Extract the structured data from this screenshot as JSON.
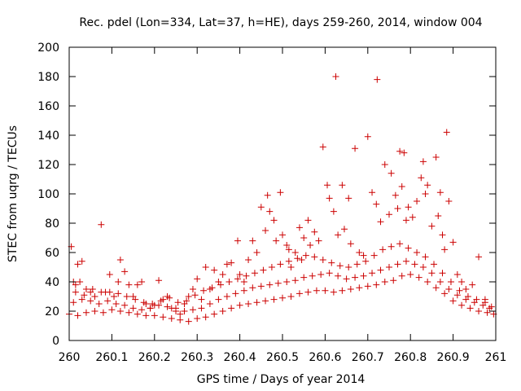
{
  "chart_data": {
    "type": "scatter",
    "title": "Rec. pdel (Lon=334, Lat=37, h=HE), days 259-260, 2014, window 004",
    "xlabel": "GPS time / Days of year 2014",
    "ylabel": "STEC from uqrg / TECUs",
    "xlim": [
      260,
      261
    ],
    "ylim": [
      0,
      200
    ],
    "x_ticks": [
      "260",
      "260.1",
      "260.2",
      "260.3",
      "260.4",
      "260.5",
      "260.6",
      "260.7",
      "260.8",
      "260.9",
      "261"
    ],
    "y_ticks": [
      "0",
      "20",
      "40",
      "60",
      "80",
      "100",
      "120",
      "140",
      "160",
      "180",
      "200"
    ],
    "grid": false,
    "legend": "none",
    "marker": "plus",
    "color": "#cc0000",
    "series": [
      {
        "points": [
          [
            260.005,
            64
          ],
          [
            260.01,
            40
          ],
          [
            260.015,
            38
          ],
          [
            260.02,
            52
          ],
          [
            260.025,
            40
          ],
          [
            260.03,
            54
          ],
          [
            260.04,
            35
          ],
          [
            260.05,
            33
          ],
          [
            260.06,
            30
          ],
          [
            260.075,
            79
          ],
          [
            260.085,
            33
          ],
          [
            260.095,
            45
          ],
          [
            260.105,
            30
          ],
          [
            260.115,
            40
          ],
          [
            260.12,
            55
          ],
          [
            260.13,
            47
          ],
          [
            260.14,
            38
          ],
          [
            260.15,
            30
          ],
          [
            260.16,
            38
          ],
          [
            260.17,
            40
          ],
          [
            260.18,
            25
          ],
          [
            260.19,
            22
          ],
          [
            260.2,
            24
          ],
          [
            260.21,
            41
          ],
          [
            260.22,
            28
          ],
          [
            260.23,
            30
          ],
          [
            260.24,
            22
          ],
          [
            260.25,
            20
          ],
          [
            260.26,
            18
          ],
          [
            260.27,
            25
          ],
          [
            260.28,
            30
          ],
          [
            260.29,
            35
          ],
          [
            260.3,
            42
          ],
          [
            260.31,
            28
          ],
          [
            260.32,
            50
          ],
          [
            260.33,
            35
          ],
          [
            260.34,
            48
          ],
          [
            260.35,
            40
          ],
          [
            260.36,
            45
          ],
          [
            260.37,
            52
          ],
          [
            260.38,
            53
          ],
          [
            260.395,
            68
          ],
          [
            260.4,
            45
          ],
          [
            260.41,
            40
          ],
          [
            260.42,
            55
          ],
          [
            260.43,
            68
          ],
          [
            260.44,
            60
          ],
          [
            260.45,
            91
          ],
          [
            260.46,
            75
          ],
          [
            260.465,
            99
          ],
          [
            260.47,
            88
          ],
          [
            260.48,
            82
          ],
          [
            260.485,
            68
          ],
          [
            260.495,
            101
          ],
          [
            260.5,
            72
          ],
          [
            260.51,
            65
          ],
          [
            260.515,
            62
          ],
          [
            260.52,
            50
          ],
          [
            260.53,
            60
          ],
          [
            260.54,
            77
          ],
          [
            260.545,
            55
          ],
          [
            260.55,
            70
          ],
          [
            260.56,
            82
          ],
          [
            260.565,
            65
          ],
          [
            260.575,
            74
          ],
          [
            260.585,
            68
          ],
          [
            260.595,
            132
          ],
          [
            260.605,
            106
          ],
          [
            260.61,
            97
          ],
          [
            260.62,
            88
          ],
          [
            260.625,
            180
          ],
          [
            260.63,
            72
          ],
          [
            260.64,
            106
          ],
          [
            260.645,
            76
          ],
          [
            260.655,
            97
          ],
          [
            260.66,
            66
          ],
          [
            260.67,
            131
          ],
          [
            260.68,
            60
          ],
          [
            260.69,
            58
          ],
          [
            260.7,
            139
          ],
          [
            260.71,
            101
          ],
          [
            260.72,
            93
          ],
          [
            260.722,
            178
          ],
          [
            260.73,
            81
          ],
          [
            260.74,
            120
          ],
          [
            260.75,
            86
          ],
          [
            260.755,
            114
          ],
          [
            260.765,
            99
          ],
          [
            260.77,
            90
          ],
          [
            260.775,
            129
          ],
          [
            260.78,
            105
          ],
          [
            260.785,
            128
          ],
          [
            260.79,
            82
          ],
          [
            260.795,
            91
          ],
          [
            260.805,
            84
          ],
          [
            260.815,
            95
          ],
          [
            260.825,
            111
          ],
          [
            260.83,
            122
          ],
          [
            260.835,
            100
          ],
          [
            260.84,
            106
          ],
          [
            260.85,
            78
          ],
          [
            260.86,
            125
          ],
          [
            260.865,
            85
          ],
          [
            260.87,
            101
          ],
          [
            260.875,
            72
          ],
          [
            260.88,
            62
          ],
          [
            260.885,
            142
          ],
          [
            260.89,
            95
          ],
          [
            260.9,
            67
          ],
          [
            260.91,
            45
          ],
          [
            260.92,
            40
          ],
          [
            260.93,
            35
          ],
          [
            260.945,
            38
          ],
          [
            260.96,
            57
          ],
          [
            260.975,
            28
          ],
          [
            260.985,
            22
          ],
          [
            260.0,
            18
          ],
          [
            260.02,
            17
          ],
          [
            260.04,
            19
          ],
          [
            260.06,
            20
          ],
          [
            260.08,
            19
          ],
          [
            260.1,
            21
          ],
          [
            260.12,
            20
          ],
          [
            260.14,
            19
          ],
          [
            260.16,
            18
          ],
          [
            260.18,
            17
          ],
          [
            260.2,
            17
          ],
          [
            260.22,
            16
          ],
          [
            260.24,
            15
          ],
          [
            260.26,
            14
          ],
          [
            260.28,
            13
          ],
          [
            260.3,
            15
          ],
          [
            260.32,
            16
          ],
          [
            260.34,
            18
          ],
          [
            260.36,
            20
          ],
          [
            260.38,
            22
          ],
          [
            260.4,
            24
          ],
          [
            260.42,
            25
          ],
          [
            260.44,
            26
          ],
          [
            260.46,
            27
          ],
          [
            260.48,
            28
          ],
          [
            260.5,
            29
          ],
          [
            260.52,
            30
          ],
          [
            260.54,
            32
          ],
          [
            260.56,
            33
          ],
          [
            260.58,
            34
          ],
          [
            260.6,
            34
          ],
          [
            260.62,
            33
          ],
          [
            260.64,
            34
          ],
          [
            260.66,
            35
          ],
          [
            260.68,
            36
          ],
          [
            260.7,
            37
          ],
          [
            260.72,
            38
          ],
          [
            260.74,
            40
          ],
          [
            260.76,
            41
          ],
          [
            260.78,
            44
          ],
          [
            260.8,
            45
          ],
          [
            260.82,
            43
          ],
          [
            260.84,
            40
          ],
          [
            260.86,
            36
          ],
          [
            260.88,
            32
          ],
          [
            260.9,
            27
          ],
          [
            260.92,
            24
          ],
          [
            260.94,
            22
          ],
          [
            260.96,
            20
          ],
          [
            260.98,
            19
          ],
          [
            260.995,
            18
          ],
          [
            260.01,
            26
          ],
          [
            260.03,
            28
          ],
          [
            260.05,
            27
          ],
          [
            260.07,
            25
          ],
          [
            260.09,
            27
          ],
          [
            260.11,
            25
          ],
          [
            260.13,
            24
          ],
          [
            260.15,
            22
          ],
          [
            260.17,
            21
          ],
          [
            260.19,
            22
          ],
          [
            260.21,
            24
          ],
          [
            260.23,
            23
          ],
          [
            260.25,
            22
          ],
          [
            260.27,
            20
          ],
          [
            260.29,
            21
          ],
          [
            260.31,
            22
          ],
          [
            260.33,
            25
          ],
          [
            260.35,
            28
          ],
          [
            260.37,
            30
          ],
          [
            260.39,
            32
          ],
          [
            260.41,
            34
          ],
          [
            260.43,
            36
          ],
          [
            260.45,
            37
          ],
          [
            260.47,
            38
          ],
          [
            260.49,
            39
          ],
          [
            260.51,
            40
          ],
          [
            260.53,
            41
          ],
          [
            260.55,
            43
          ],
          [
            260.57,
            44
          ],
          [
            260.59,
            45
          ],
          [
            260.61,
            46
          ],
          [
            260.63,
            44
          ],
          [
            260.65,
            42
          ],
          [
            260.67,
            43
          ],
          [
            260.69,
            44
          ],
          [
            260.71,
            46
          ],
          [
            260.73,
            48
          ],
          [
            260.75,
            50
          ],
          [
            260.77,
            52
          ],
          [
            260.79,
            54
          ],
          [
            260.81,
            52
          ],
          [
            260.83,
            50
          ],
          [
            260.85,
            46
          ],
          [
            260.87,
            40
          ],
          [
            260.89,
            35
          ],
          [
            260.91,
            31
          ],
          [
            260.93,
            28
          ],
          [
            260.95,
            26
          ],
          [
            260.97,
            24
          ],
          [
            260.99,
            23
          ],
          [
            260.015,
            33
          ],
          [
            260.035,
            31
          ],
          [
            260.055,
            35
          ],
          [
            260.075,
            33
          ],
          [
            260.095,
            33
          ],
          [
            260.115,
            32
          ],
          [
            260.135,
            30
          ],
          [
            260.155,
            28
          ],
          [
            260.175,
            26
          ],
          [
            260.195,
            25
          ],
          [
            260.215,
            27
          ],
          [
            260.235,
            29
          ],
          [
            260.255,
            26
          ],
          [
            260.275,
            27
          ],
          [
            260.295,
            31
          ],
          [
            260.315,
            34
          ],
          [
            260.335,
            36
          ],
          [
            260.355,
            38
          ],
          [
            260.375,
            40
          ],
          [
            260.395,
            42
          ],
          [
            260.415,
            44
          ],
          [
            260.435,
            46
          ],
          [
            260.455,
            48
          ],
          [
            260.475,
            50
          ],
          [
            260.495,
            52
          ],
          [
            260.515,
            54
          ],
          [
            260.535,
            56
          ],
          [
            260.555,
            58
          ],
          [
            260.575,
            57
          ],
          [
            260.595,
            55
          ],
          [
            260.615,
            53
          ],
          [
            260.635,
            51
          ],
          [
            260.655,
            50
          ],
          [
            260.675,
            52
          ],
          [
            260.695,
            54
          ],
          [
            260.715,
            58
          ],
          [
            260.735,
            62
          ],
          [
            260.755,
            64
          ],
          [
            260.775,
            66
          ],
          [
            260.795,
            63
          ],
          [
            260.815,
            60
          ],
          [
            260.835,
            57
          ],
          [
            260.855,
            52
          ],
          [
            260.875,
            46
          ],
          [
            260.895,
            40
          ],
          [
            260.915,
            34
          ],
          [
            260.935,
            30
          ],
          [
            260.955,
            28
          ],
          [
            260.975,
            26
          ]
        ]
      }
    ]
  }
}
